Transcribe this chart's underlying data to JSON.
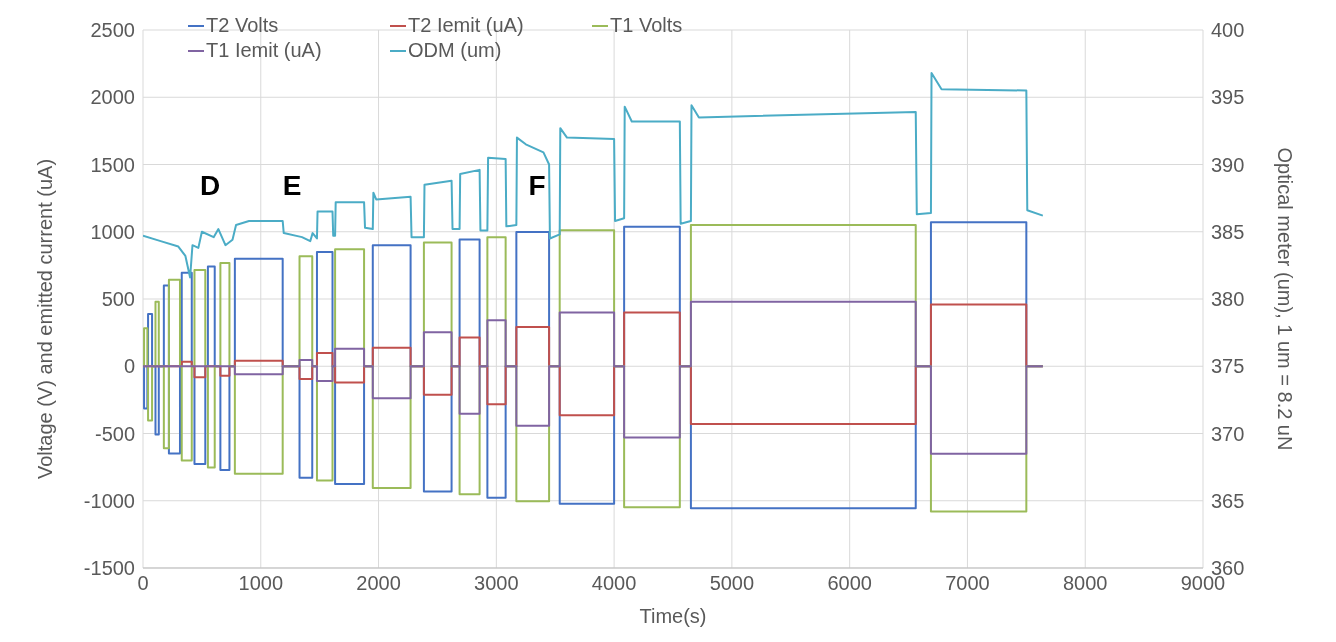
{
  "chart_data": {
    "type": "line",
    "xlabel": "Time(s)",
    "ylabel": "Voltage (V) and emitted current (uA)",
    "y2label": "Optical meter (um), 1 um = 8.2 uN",
    "xlim": [
      0,
      9000
    ],
    "xticks": [
      0,
      1000,
      2000,
      3000,
      4000,
      5000,
      6000,
      7000,
      8000,
      9000
    ],
    "ylim": [
      -1500,
      2500
    ],
    "yticks": [
      -1500,
      -1000,
      -500,
      0,
      500,
      1000,
      1500,
      2000,
      2500
    ],
    "y2lim": [
      360,
      400
    ],
    "y2ticks": [
      360,
      365,
      370,
      375,
      380,
      385,
      390,
      395,
      400
    ],
    "grid": true,
    "legend": "top left",
    "x": [
      0,
      9,
      9,
      37,
      37,
      43,
      43,
      77,
      77,
      106,
      106,
      134,
      134,
      177,
      177,
      220,
      220,
      220,
      220,
      314,
      314,
      329,
      329,
      414,
      414,
      437,
      437,
      529,
      529,
      551,
      551,
      609,
      609,
      657,
      657,
      734,
      734,
      780,
      780,
      1186,
      1186,
      1329,
      1329,
      1437,
      1437,
      1477,
      1477,
      1609,
      1609,
      1631,
      1631,
      1877,
      1877,
      1951,
      1951,
      2272,
      2272,
      2385,
      2385,
      2620,
      2620,
      2688,
      2688,
      2858,
      2858,
      2924,
      2924,
      3079,
      3079,
      3170,
      3170,
      3448,
      3448,
      3538,
      3538,
      4000,
      4000,
      4085,
      4085,
      4558,
      4558,
      4652,
      4652,
      6561,
      6561,
      6690,
      6690,
      7500,
      7500,
      7640
    ],
    "annotations": [
      "D",
      "E",
      "F"
    ],
    "series": [
      {
        "name": "T2 Volts",
        "color": "#4472c4",
        "values": [
          0,
          0,
          -314,
          -314,
          0,
          0,
          388,
          388,
          0,
          0,
          -507,
          -507,
          0,
          0,
          600,
          600,
          0,
          0,
          -649,
          -649,
          0,
          0,
          695,
          695,
          0,
          0,
          -726,
          -726,
          0,
          0,
          741,
          741,
          0,
          0,
          -772,
          -772,
          0,
          0,
          800,
          800,
          0,
          0,
          -829,
          -829,
          0,
          0,
          850,
          850,
          0,
          0,
          -875,
          -875,
          0,
          0,
          900,
          900,
          0,
          0,
          -932,
          -932,
          0,
          0,
          942,
          942,
          0,
          0,
          -978,
          -978,
          0,
          0,
          998,
          998,
          0,
          0,
          -1022,
          -1022,
          0,
          0,
          1037,
          1037,
          0,
          0,
          -1055,
          -1055,
          0,
          0,
          1070,
          1070,
          0,
          0
        ]
      },
      {
        "name": "T2 Iemit (uA)",
        "color": "#c0504d",
        "values": [
          null,
          null,
          0,
          0,
          0,
          0,
          0,
          0,
          0,
          0,
          0,
          0,
          0,
          0,
          0,
          0,
          0,
          0,
          0,
          0,
          0,
          0,
          33,
          33,
          0,
          0,
          -82,
          -82,
          0,
          0,
          0,
          0,
          0,
          0,
          -70,
          -70,
          0,
          0,
          40,
          40,
          0,
          0,
          -95,
          -95,
          0,
          0,
          98,
          98,
          0,
          0,
          -121,
          -121,
          0,
          0,
          137,
          137,
          0,
          0,
          -211,
          -211,
          0,
          0,
          214,
          214,
          0,
          0,
          -283,
          -283,
          0,
          0,
          291,
          291,
          0,
          0,
          -365,
          -365,
          0,
          0,
          400,
          400,
          0,
          0,
          -430,
          -430,
          0,
          0,
          460,
          460,
          0,
          0
        ]
      },
      {
        "name": "T1 Volts",
        "color": "#9bbb59",
        "values": [
          0,
          0,
          283,
          283,
          0,
          0,
          -404,
          -404,
          0,
          0,
          480,
          480,
          0,
          0,
          -610,
          -610,
          0,
          0,
          643,
          643,
          0,
          0,
          -700,
          -700,
          0,
          0,
          716,
          716,
          0,
          0,
          -752,
          -752,
          0,
          0,
          767,
          767,
          0,
          0,
          -800,
          -800,
          0,
          0,
          818,
          818,
          0,
          0,
          -850,
          -850,
          0,
          0,
          870,
          870,
          0,
          0,
          -906,
          -906,
          0,
          0,
          921,
          921,
          0,
          0,
          -952,
          -952,
          0,
          0,
          960,
          960,
          0,
          0,
          -1004,
          -1004,
          0,
          0,
          1012,
          1012,
          0,
          0,
          -1048,
          -1048,
          0,
          0,
          1050,
          1050,
          0,
          0,
          -1080,
          -1080,
          0,
          0
        ]
      },
      {
        "name": "T1 Iemit (uA)",
        "color": "#8064a2",
        "values": [
          0,
          0,
          0,
          0,
          0,
          0,
          0,
          0,
          0,
          0,
          0,
          0,
          0,
          0,
          0,
          0,
          0,
          0,
          0,
          0,
          0,
          0,
          0,
          0,
          0,
          0,
          0,
          0,
          0,
          0,
          0,
          0,
          0,
          0,
          0,
          0,
          0,
          0,
          -60,
          -60,
          0,
          0,
          46,
          46,
          0,
          0,
          -110,
          -110,
          0,
          0,
          130,
          130,
          0,
          0,
          -237,
          -237,
          0,
          0,
          252,
          252,
          0,
          0,
          -353,
          -353,
          0,
          0,
          342,
          342,
          0,
          0,
          -443,
          -443,
          0,
          0,
          400,
          400,
          0,
          0,
          -530,
          -530,
          0,
          0,
          480,
          480,
          0,
          0,
          -650,
          -650,
          0,
          0
        ]
      },
      {
        "name": "ODM (um)",
        "color": "#4bacc6",
        "axis": "y2",
        "x": [
          0,
          150,
          300,
          360,
          400,
          420,
          470,
          500,
          600,
          640,
          700,
          760,
          790,
          900,
          1186,
          1195,
          1350,
          1420,
          1440,
          1477,
          1482,
          1609,
          1615,
          1631,
          1636,
          1877,
          1885,
          1951,
          1956,
          1980,
          2272,
          2280,
          2385,
          2390,
          2620,
          2628,
          2688,
          2693,
          2858,
          2865,
          2924,
          2930,
          3079,
          3085,
          3170,
          3175,
          3250,
          3400,
          3448,
          3455,
          3538,
          3543,
          3600,
          4000,
          4008,
          4085,
          4090,
          4150,
          4558,
          4565,
          4652,
          4657,
          4720,
          6561,
          6570,
          6690,
          6695,
          6780,
          7500,
          7508,
          7640
        ],
        "values": [
          384.7,
          384.3,
          383.9,
          383.2,
          381.6,
          384.0,
          383.8,
          385.0,
          384.6,
          385.2,
          384.0,
          384.4,
          385.5,
          385.8,
          385.8,
          384.9,
          384.6,
          384.3,
          384.9,
          384.5,
          386.5,
          386.5,
          384.7,
          384.7,
          387.2,
          387.2,
          385.3,
          385.2,
          387.9,
          387.4,
          387.6,
          384.6,
          384.6,
          388.5,
          388.8,
          385.2,
          385.2,
          389.3,
          389.6,
          385.1,
          385.1,
          390.5,
          390.4,
          385.4,
          385.5,
          392.0,
          391.5,
          390.9,
          390.0,
          384.5,
          384.8,
          392.7,
          392.0,
          391.9,
          385.8,
          386.0,
          394.3,
          393.2,
          393.2,
          385.6,
          385.8,
          394.4,
          393.5,
          393.9,
          386.3,
          386.4,
          396.8,
          395.6,
          395.5,
          386.6,
          386.2
        ]
      }
    ]
  }
}
